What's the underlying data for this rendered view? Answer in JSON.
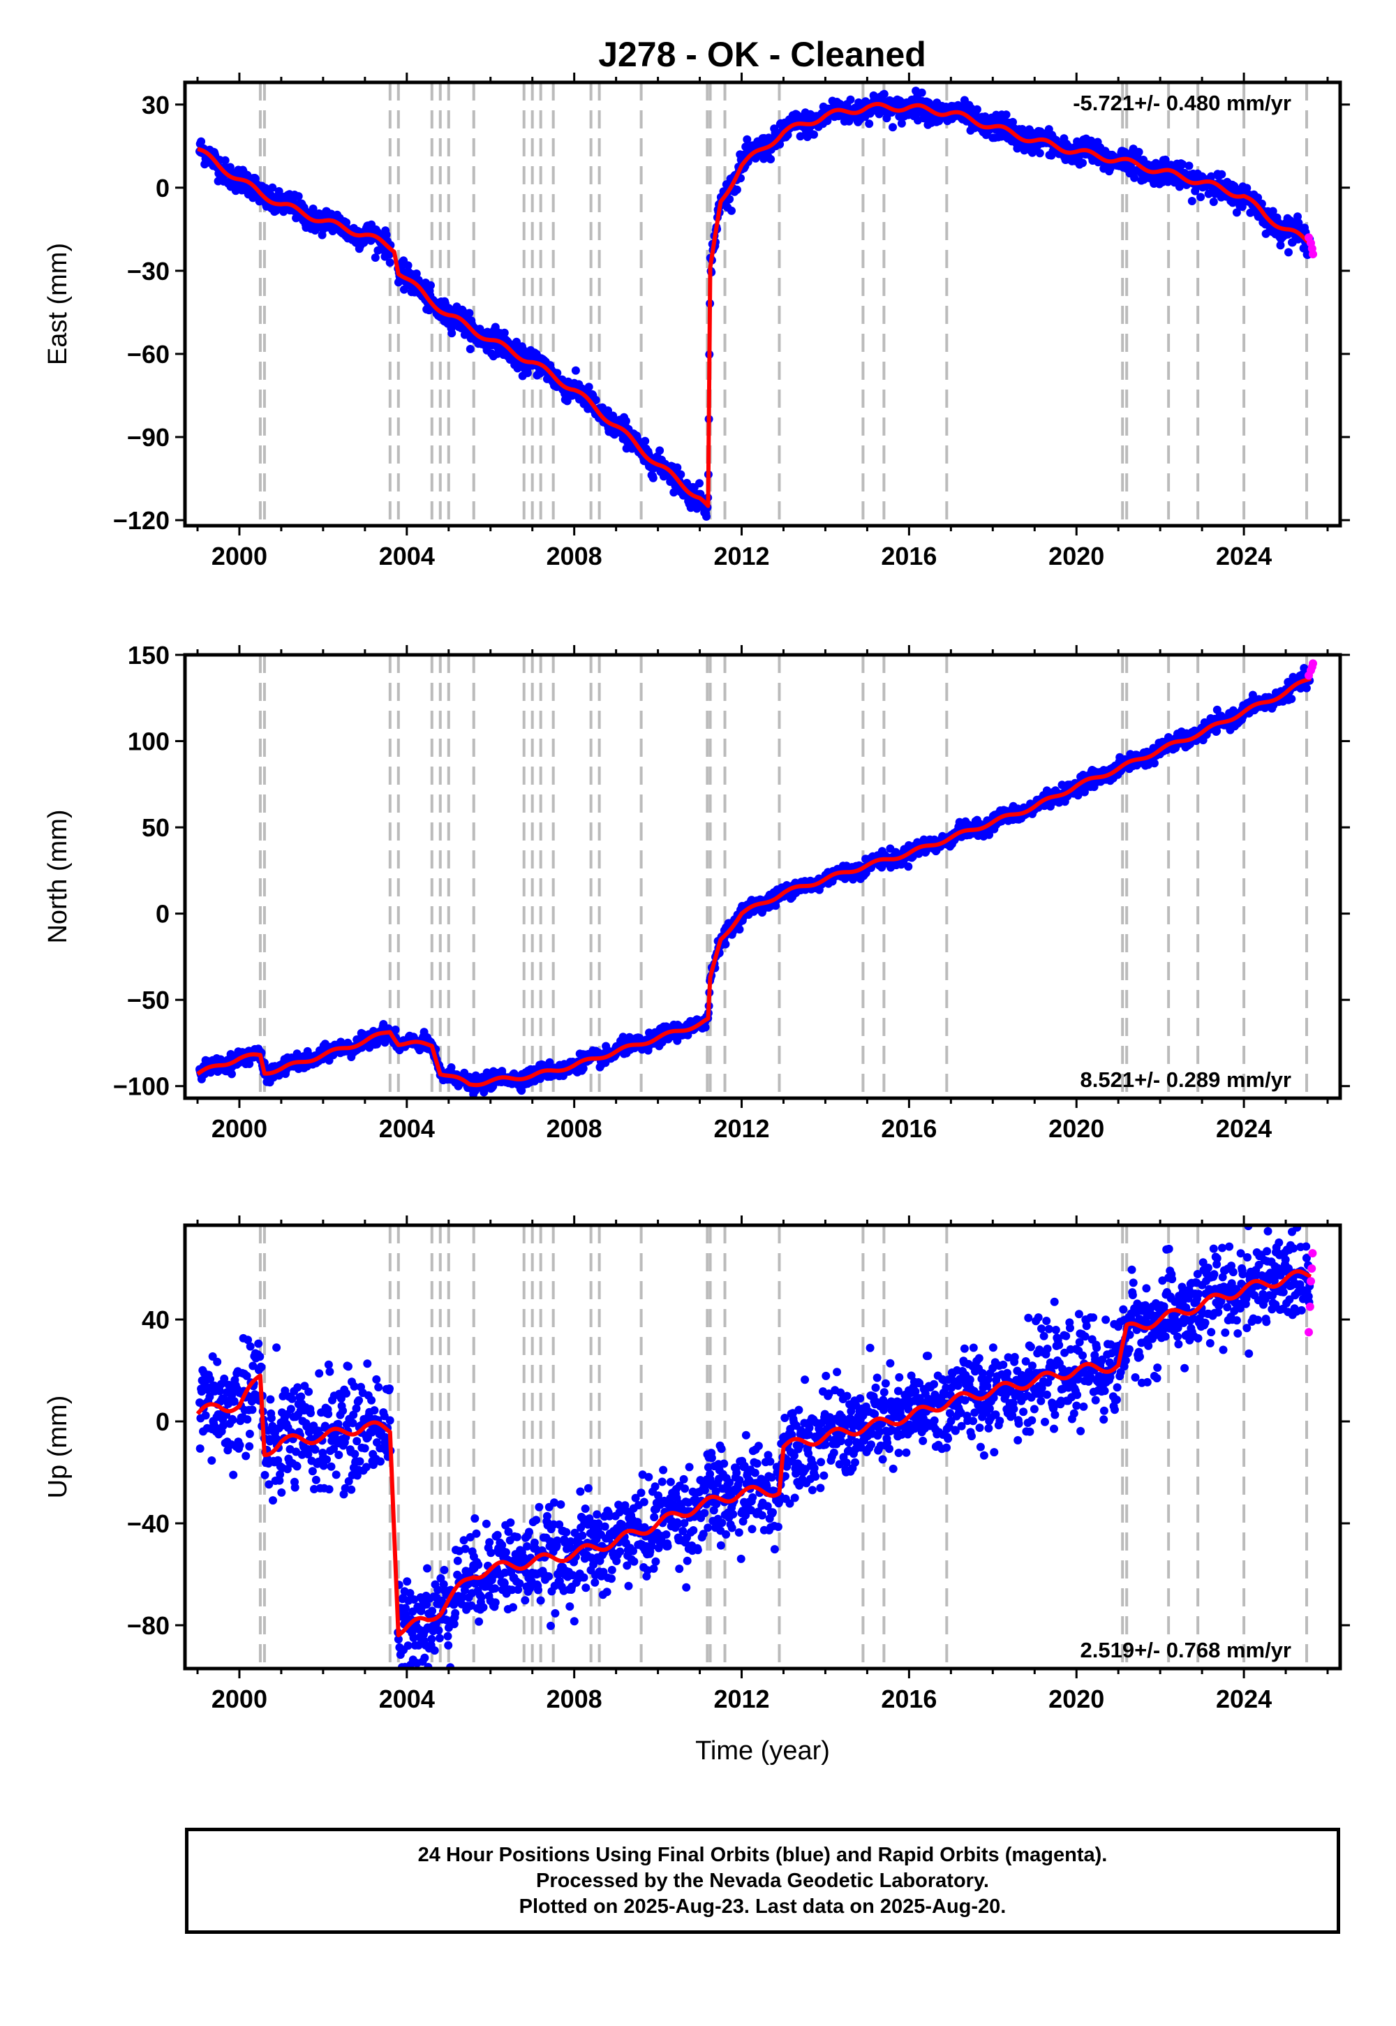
{
  "title": "J278  - OK - Cleaned",
  "colors": {
    "final_orbits": "#0000ff",
    "rapid_orbits": "#ff00ff",
    "model_fit": "#ff0000",
    "equipment_change": "#bbbbbb"
  },
  "chart_data": [
    {
      "type": "scatter",
      "name": "east",
      "ylabel": "East (mm)",
      "xlabel": "",
      "xlim": [
        1998.7,
        2026.3
      ],
      "ylim": [
        -122,
        38
      ],
      "yticks": [
        -120,
        -90,
        -60,
        -30,
        0,
        30
      ],
      "xticks": [
        2000,
        2004,
        2008,
        2012,
        2016,
        2020,
        2024
      ],
      "grid": false,
      "rate_label": "-5.721+/- 0.480 mm/yr",
      "rate_position": "top-right",
      "offset_epochs": [
        2000.5,
        2000.6,
        2003.6,
        2003.8,
        2004.6,
        2004.8,
        2005.0,
        2005.6,
        2006.8,
        2007.0,
        2007.2,
        2007.5,
        2008.4,
        2008.6,
        2009.6,
        2011.18,
        2011.25,
        2011.6,
        2012.9,
        2014.9,
        2015.4,
        2016.9,
        2021.1,
        2021.2,
        2022.2,
        2022.9,
        2024.0,
        2025.5
      ],
      "trend": [
        [
          1999.0,
          14
        ],
        [
          1999.5,
          8
        ],
        [
          2000.0,
          3
        ],
        [
          2000.5,
          -2
        ],
        [
          2001.0,
          -6
        ],
        [
          2002.0,
          -12
        ],
        [
          2003.0,
          -17
        ],
        [
          2003.7,
          -22
        ],
        [
          2003.8,
          -30
        ],
        [
          2004.5,
          -40
        ],
        [
          2005.0,
          -46
        ],
        [
          2006.0,
          -55
        ],
        [
          2007.0,
          -63
        ],
        [
          2008.0,
          -73
        ],
        [
          2009.0,
          -86
        ],
        [
          2010.0,
          -100
        ],
        [
          2011.0,
          -112
        ],
        [
          2011.2,
          -116
        ],
        [
          2011.25,
          -30
        ],
        [
          2011.5,
          -5
        ],
        [
          2012.0,
          8
        ],
        [
          2013.0,
          20
        ],
        [
          2014.0,
          26
        ],
        [
          2015.0,
          29
        ],
        [
          2016.0,
          29
        ],
        [
          2017.0,
          27
        ],
        [
          2018.0,
          22
        ],
        [
          2019.0,
          17
        ],
        [
          2020.0,
          13
        ],
        [
          2021.0,
          10
        ],
        [
          2022.0,
          6
        ],
        [
          2023.0,
          2
        ],
        [
          2024.0,
          -3
        ],
        [
          2024.5,
          -10
        ],
        [
          2025.0,
          -15
        ],
        [
          2025.6,
          -20
        ]
      ],
      "rapid_points": [
        [
          2025.55,
          -18
        ],
        [
          2025.6,
          -20
        ],
        [
          2025.63,
          -22
        ],
        [
          2025.65,
          -24
        ]
      ]
    },
    {
      "type": "scatter",
      "name": "north",
      "ylabel": "North (mm)",
      "xlabel": "",
      "xlim": [
        1998.7,
        2026.3
      ],
      "ylim": [
        -107,
        150
      ],
      "yticks": [
        -100,
        -50,
        0,
        50,
        100,
        150
      ],
      "xticks": [
        2000,
        2004,
        2008,
        2012,
        2016,
        2020,
        2024
      ],
      "grid": false,
      "rate_label": "8.521+/- 0.289 mm/yr",
      "rate_position": "bottom-right",
      "offset_epochs": [
        2000.5,
        2000.6,
        2003.6,
        2003.8,
        2004.6,
        2004.8,
        2005.0,
        2005.6,
        2006.8,
        2007.0,
        2007.2,
        2007.5,
        2008.4,
        2008.6,
        2009.6,
        2011.18,
        2011.25,
        2011.6,
        2012.9,
        2014.9,
        2015.4,
        2016.9,
        2021.1,
        2021.2,
        2022.2,
        2022.9,
        2024.0,
        2025.5
      ],
      "trend": [
        [
          1999.0,
          -93
        ],
        [
          1999.5,
          -88
        ],
        [
          2000.0,
          -84
        ],
        [
          2000.5,
          -82
        ],
        [
          2000.6,
          -92
        ],
        [
          2001.0,
          -90
        ],
        [
          2002.0,
          -82
        ],
        [
          2003.0,
          -74
        ],
        [
          2003.6,
          -68
        ],
        [
          2003.8,
          -75
        ],
        [
          2004.6,
          -76
        ],
        [
          2004.8,
          -92
        ],
        [
          2005.5,
          -99
        ],
        [
          2006.0,
          -97
        ],
        [
          2007.0,
          -94
        ],
        [
          2008.0,
          -88
        ],
        [
          2009.0,
          -80
        ],
        [
          2010.0,
          -72
        ],
        [
          2011.0,
          -64
        ],
        [
          2011.2,
          -62
        ],
        [
          2011.25,
          -38
        ],
        [
          2011.5,
          -15
        ],
        [
          2012.0,
          0
        ],
        [
          2013.0,
          12
        ],
        [
          2014.0,
          20
        ],
        [
          2015.0,
          28
        ],
        [
          2016.0,
          35
        ],
        [
          2017.0,
          44
        ],
        [
          2018.0,
          53
        ],
        [
          2019.0,
          62
        ],
        [
          2020.0,
          74
        ],
        [
          2021.0,
          84
        ],
        [
          2022.0,
          95
        ],
        [
          2023.0,
          105
        ],
        [
          2024.0,
          117
        ],
        [
          2025.0,
          128
        ],
        [
          2025.6,
          137
        ]
      ],
      "rapid_points": [
        [
          2025.55,
          138
        ],
        [
          2025.6,
          141
        ],
        [
          2025.63,
          143
        ],
        [
          2025.65,
          145
        ]
      ]
    },
    {
      "type": "scatter",
      "name": "up",
      "ylabel": "Up (mm)",
      "xlabel": "Time (year)",
      "xlim": [
        1998.7,
        2026.3
      ],
      "ylim": [
        -97,
        77
      ],
      "yticks": [
        -80,
        -40,
        0,
        40
      ],
      "xticks": [
        2000,
        2004,
        2008,
        2012,
        2016,
        2020,
        2024
      ],
      "grid": false,
      "rate_label": "2.519+/- 0.768 mm/yr",
      "rate_position": "bottom-right",
      "offset_epochs": [
        2000.5,
        2000.6,
        2003.6,
        2003.8,
        2004.6,
        2004.8,
        2005.0,
        2005.6,
        2006.8,
        2007.0,
        2007.2,
        2007.5,
        2008.4,
        2008.6,
        2009.6,
        2011.18,
        2011.25,
        2011.6,
        2012.9,
        2014.9,
        2015.4,
        2016.9,
        2021.1,
        2021.2,
        2022.2,
        2022.9,
        2024.0,
        2025.5
      ],
      "trend": [
        [
          1999.0,
          3
        ],
        [
          1999.5,
          6
        ],
        [
          2000.0,
          6
        ],
        [
          2000.5,
          18
        ],
        [
          2000.6,
          -12
        ],
        [
          2001.0,
          -8
        ],
        [
          2002.0,
          -6
        ],
        [
          2003.0,
          -2
        ],
        [
          2003.6,
          -3
        ],
        [
          2003.8,
          -82
        ],
        [
          2004.5,
          -78
        ],
        [
          2004.8,
          -74
        ],
        [
          2005.0,
          -70
        ],
        [
          2005.6,
          -60
        ],
        [
          2006.0,
          -58
        ],
        [
          2007.0,
          -55
        ],
        [
          2008.0,
          -52
        ],
        [
          2009.0,
          -47
        ],
        [
          2010.0,
          -40
        ],
        [
          2011.0,
          -33
        ],
        [
          2012.0,
          -28
        ],
        [
          2012.9,
          -27
        ],
        [
          2013.0,
          -10
        ],
        [
          2014.0,
          -6
        ],
        [
          2015.0,
          -2
        ],
        [
          2016.0,
          2
        ],
        [
          2017.0,
          8
        ],
        [
          2018.0,
          12
        ],
        [
          2019.0,
          16
        ],
        [
          2020.0,
          20
        ],
        [
          2021.0,
          22
        ],
        [
          2021.2,
          36
        ],
        [
          2022.0,
          40
        ],
        [
          2023.0,
          46
        ],
        [
          2024.0,
          52
        ],
        [
          2025.0,
          56
        ],
        [
          2025.6,
          58
        ]
      ],
      "rapid_points": [
        [
          2025.55,
          35
        ],
        [
          2025.58,
          45
        ],
        [
          2025.6,
          55
        ],
        [
          2025.62,
          60
        ],
        [
          2025.64,
          66
        ]
      ]
    }
  ],
  "footer": {
    "line1": "24 Hour Positions Using Final Orbits (blue) and Rapid Orbits (magenta).",
    "line2": "Processed by the Nevada Geodetic Laboratory.",
    "line3": "Plotted on 2025-Aug-23. Last data on 2025-Aug-20."
  }
}
